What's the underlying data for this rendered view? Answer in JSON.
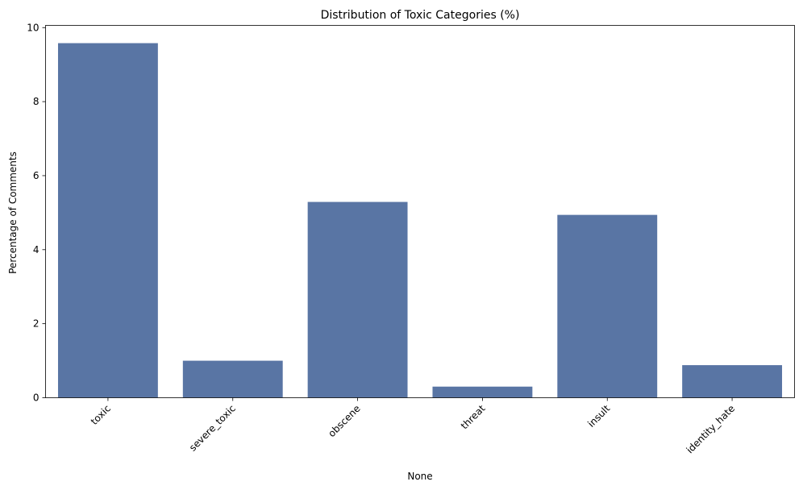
{
  "chart_data": {
    "type": "bar",
    "title": "Distribution of Toxic Categories (%)",
    "xlabel": "None",
    "ylabel": "Percentage of Comments",
    "categories": [
      "toxic",
      "severe_toxic",
      "obscene",
      "threat",
      "insult",
      "identity_hate"
    ],
    "values": [
      9.58,
      1.0,
      5.29,
      0.3,
      4.94,
      0.88
    ],
    "ylim": [
      0,
      10.06
    ],
    "yticks": [
      "0",
      "2",
      "4",
      "6",
      "8",
      "10"
    ],
    "grid": false,
    "legend": "none",
    "colors": {
      "bar": "#5975a4",
      "axis": "#000000"
    }
  }
}
